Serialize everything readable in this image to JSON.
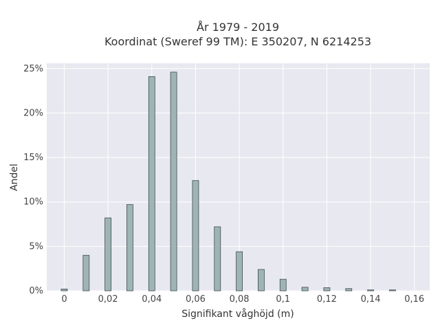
{
  "chart_data": {
    "type": "bar",
    "title_lines": [
      "År 1979 - 2019",
      "Koordinat (Sweref 99 TM): E 350207, N 6214253"
    ],
    "xlabel": "Signifikant våghöjd (m)",
    "ylabel": "Andel",
    "x": [
      0,
      0.01,
      0.02,
      0.03,
      0.04,
      0.05,
      0.06,
      0.07,
      0.08,
      0.09,
      0.1,
      0.11,
      0.12,
      0.13,
      0.14,
      0.15
    ],
    "values": [
      0.2,
      4.0,
      8.2,
      9.7,
      24.1,
      24.6,
      12.4,
      7.2,
      4.4,
      2.4,
      1.3,
      0.4,
      0.35,
      0.25,
      0.1,
      0.1
    ],
    "xlim": [
      -0.008,
      0.167
    ],
    "ylim": [
      0,
      25.6
    ],
    "x_ticks": [
      0,
      0.02,
      0.04,
      0.06,
      0.08,
      0.1,
      0.12,
      0.14,
      0.16
    ],
    "x_tick_labels": [
      "0",
      "0,02",
      "0,04",
      "0,06",
      "0,08",
      "0,1",
      "0,12",
      "0,14",
      "0,16"
    ],
    "y_ticks": [
      0,
      5,
      10,
      15,
      20,
      25
    ],
    "y_tick_labels": [
      "0%",
      "5%",
      "10%",
      "15%",
      "20%",
      "25%"
    ],
    "grid": true,
    "bar_color": "#9fb5b5",
    "bar_edge_color": "#3d4a4a",
    "plot_background": "#e8e8f0"
  }
}
